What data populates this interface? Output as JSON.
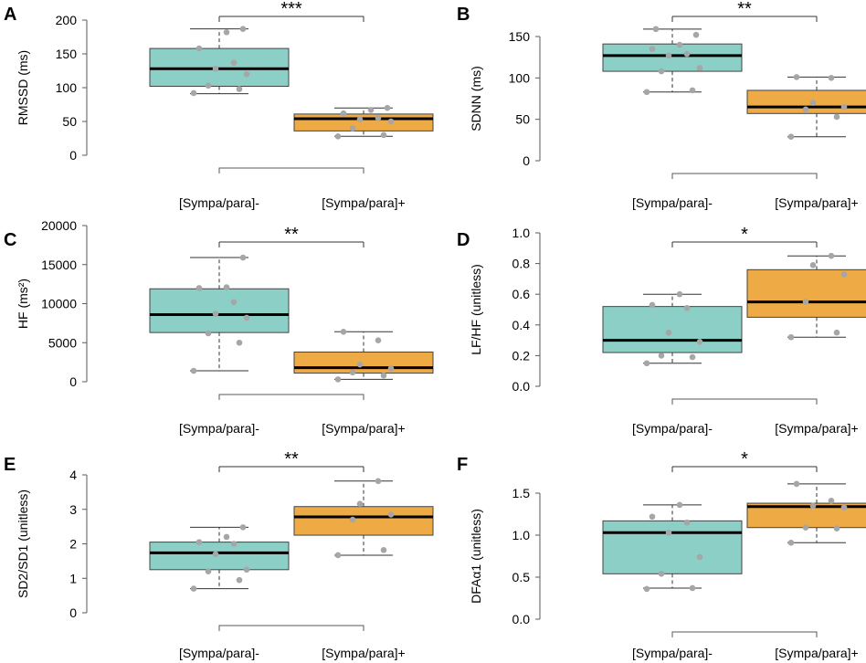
{
  "colors": {
    "group_minus": "#8CCFC6",
    "group_plus": "#EEAA45",
    "points": "#A6A6A6",
    "axis": "#595959"
  },
  "chart_data": [
    {
      "type": "box",
      "panel": "A",
      "ylabel": "RMSSD (ms)",
      "ylim": [
        0,
        200
      ],
      "yticks": [
        0,
        50,
        100,
        150,
        200
      ],
      "ytick_labels": [
        "0",
        "50",
        "100",
        "150",
        "200"
      ],
      "categories": [
        "[Sympa/para]-",
        "[Sympa/para]+"
      ],
      "significance": "***",
      "boxes": [
        {
          "whisker_low": 91,
          "q1": 102,
          "median": 128,
          "q3": 158,
          "whisker_high": 187,
          "points": [
            92,
            98,
            103,
            120,
            128,
            137,
            158,
            182,
            187
          ]
        },
        {
          "whisker_low": 28,
          "q1": 36,
          "median": 54,
          "q3": 61,
          "whisker_high": 70,
          "points": [
            28,
            30,
            40,
            50,
            53,
            55,
            62,
            67,
            70
          ]
        }
      ]
    },
    {
      "type": "box",
      "panel": "B",
      "ylabel": "SDNN (ms)",
      "ylim": [
        0,
        150
      ],
      "yticks": [
        0,
        50,
        100,
        150
      ],
      "ytick_labels": [
        "0",
        "50",
        "100",
        "150"
      ],
      "categories": [
        "[Sympa/para]-",
        "[Sympa/para]+"
      ],
      "significance": "**",
      "boxes": [
        {
          "whisker_low": 83,
          "q1": 108,
          "median": 127,
          "q3": 141,
          "whisker_high": 159,
          "points": [
            83,
            85,
            108,
            112,
            127,
            129,
            135,
            140,
            152,
            159
          ]
        },
        {
          "whisker_low": 29,
          "q1": 57,
          "median": 65,
          "q3": 85,
          "whisker_high": 101,
          "points": [
            29,
            53,
            62,
            65,
            70,
            100,
            101
          ]
        }
      ]
    },
    {
      "type": "box",
      "panel": "C",
      "ylabel": "HF (ms²)",
      "ylim": [
        0,
        20000
      ],
      "yticks": [
        0,
        5000,
        10000,
        15000,
        20000
      ],
      "ytick_labels": [
        "0",
        "5000",
        "10000",
        "15000",
        "20000"
      ],
      "categories": [
        "[Sympa/para]-",
        "[Sympa/para]+"
      ],
      "significance": "**",
      "boxes": [
        {
          "whisker_low": 1400,
          "q1": 6300,
          "median": 8600,
          "q3": 11900,
          "whisker_high": 15900,
          "points": [
            1400,
            5000,
            6200,
            8200,
            8700,
            10200,
            12000,
            12100,
            15900
          ]
        },
        {
          "whisker_low": 300,
          "q1": 1100,
          "median": 1800,
          "q3": 3800,
          "whisker_high": 6400,
          "points": [
            300,
            800,
            1200,
            1700,
            2200,
            5300,
            6400
          ]
        }
      ]
    },
    {
      "type": "box",
      "panel": "D",
      "ylabel": "LF/HF (unitless)",
      "ylim": [
        0.0,
        1.0
      ],
      "yticks": [
        0.0,
        0.2,
        0.4,
        0.6,
        0.8,
        1.0
      ],
      "ytick_labels": [
        "0.0",
        "0.2",
        "0.4",
        "0.6",
        "0.8",
        "1.0"
      ],
      "categories": [
        "[Sympa/para]-",
        "[Sympa/para]+"
      ],
      "significance": "*",
      "boxes": [
        {
          "whisker_low": 0.15,
          "q1": 0.22,
          "median": 0.3,
          "q3": 0.52,
          "whisker_high": 0.6,
          "points": [
            0.15,
            0.19,
            0.2,
            0.29,
            0.35,
            0.51,
            0.53,
            0.6
          ]
        },
        {
          "whisker_low": 0.32,
          "q1": 0.45,
          "median": 0.55,
          "q3": 0.76,
          "whisker_high": 0.85,
          "points": [
            0.32,
            0.35,
            0.55,
            0.73,
            0.79,
            0.85
          ]
        }
      ]
    },
    {
      "type": "box",
      "panel": "E",
      "ylabel": "SD2/SD1 (unitless)",
      "ylim": [
        0,
        4
      ],
      "yticks": [
        0,
        1,
        2,
        3,
        4
      ],
      "ytick_labels": [
        "0",
        "1",
        "2",
        "3",
        "4"
      ],
      "categories": [
        "[Sympa/para]-",
        "[Sympa/para]+"
      ],
      "significance": "**",
      "boxes": [
        {
          "whisker_low": 0.7,
          "q1": 1.25,
          "median": 1.74,
          "q3": 2.05,
          "whisker_high": 2.48,
          "points": [
            0.7,
            0.95,
            1.2,
            1.25,
            1.7,
            2.0,
            2.05,
            2.2,
            2.48
          ]
        },
        {
          "whisker_low": 1.67,
          "q1": 2.25,
          "median": 2.78,
          "q3": 3.08,
          "whisker_high": 3.82,
          "points": [
            1.67,
            1.82,
            2.7,
            2.85,
            3.16,
            3.82
          ]
        }
      ]
    },
    {
      "type": "box",
      "panel": "F",
      "ylabel": "DFAα1 (unitless)",
      "ylim": [
        0.0,
        1.5
      ],
      "yticks": [
        0.0,
        0.5,
        1.0,
        1.5
      ],
      "ytick_labels": [
        "0.0",
        "0.5",
        "1.0",
        "1.5"
      ],
      "categories": [
        "[Sympa/para]-",
        "[Sympa/para]+"
      ],
      "significance": "*",
      "boxes": [
        {
          "whisker_low": 0.37,
          "q1": 0.54,
          "median": 1.03,
          "q3": 1.17,
          "whisker_high": 1.36,
          "points": [
            0.36,
            0.37,
            0.54,
            0.74,
            1.03,
            1.15,
            1.22,
            1.36
          ]
        },
        {
          "whisker_low": 0.91,
          "q1": 1.09,
          "median": 1.34,
          "q3": 1.38,
          "whisker_high": 1.61,
          "points": [
            0.91,
            1.08,
            1.09,
            1.33,
            1.35,
            1.41,
            1.61
          ]
        }
      ]
    }
  ]
}
